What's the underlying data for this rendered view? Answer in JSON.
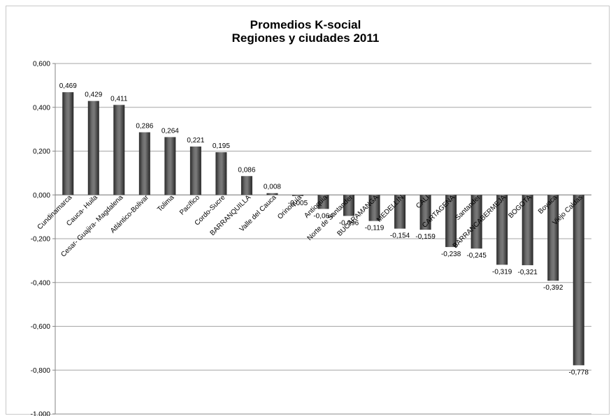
{
  "chart_data": {
    "type": "bar",
    "title": "Promedios K-social",
    "subtitle": "Regiones y ciudades 2011",
    "xlabel": "",
    "ylabel": "",
    "ylim": [
      -1.0,
      0.6
    ],
    "yticks": [
      "0,600",
      "0,400",
      "0,200",
      "0,000",
      "-0,200",
      "-0,400",
      "-0,600",
      "-0,800",
      "-1,000"
    ],
    "grid": true,
    "categories": [
      "Cundinamarca",
      "Cauca- Huila",
      "Cesar- Guajira- Magdalena",
      "Atlántico-Bolivar",
      "Tolima",
      "Pacífico",
      "Cordo-Sucre",
      "BARRANQUILLA",
      "Valle del Cauca",
      "Orinoquía",
      "Antioquia",
      "Norte de Santander",
      "BUCARAMANGA",
      "MEDELLIN",
      "CALI",
      "CARTAGENA",
      "Santander",
      "BARRANCABERMEJA",
      "BOGOTA",
      "Boyaca",
      "Viejo Caldas"
    ],
    "values": [
      0.469,
      0.429,
      0.411,
      0.286,
      0.264,
      0.221,
      0.195,
      0.086,
      0.008,
      -0.005,
      -0.064,
      -0.096,
      -0.119,
      -0.154,
      -0.159,
      -0.238,
      -0.245,
      -0.319,
      -0.321,
      -0.392,
      -0.778
    ],
    "value_labels": [
      "0,469",
      "0,429",
      "0,411",
      "0,286",
      "0,264",
      "0,221",
      "0,195",
      "0,086",
      "0,008",
      "-0,005",
      "-0,064",
      "-0,096",
      "-0,119",
      "-0,154",
      "-0,159",
      "-0,238",
      "-0,245",
      "-0,319",
      "-0,321",
      "-0,392",
      "-0,778"
    ],
    "bar_color": "#3f3f3f"
  }
}
